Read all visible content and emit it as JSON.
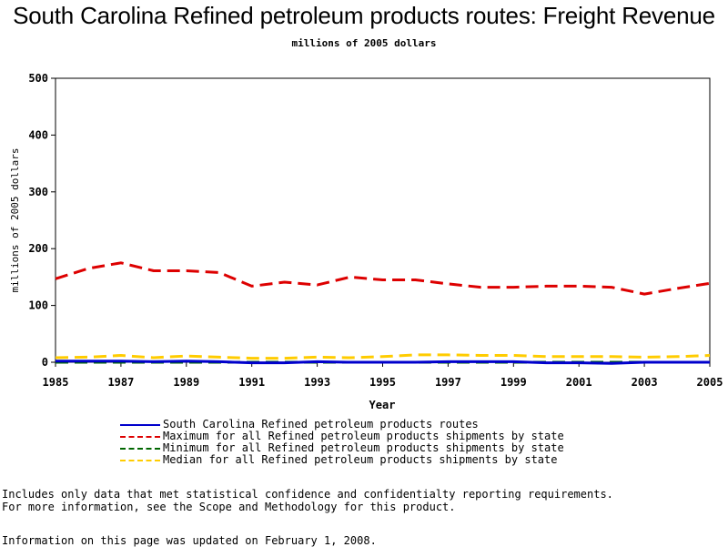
{
  "page": {
    "notes": [
      "Includes only data that met statistical confidence and confidentialty reporting requirements.",
      "For more information, see the Scope and Methodology for this product."
    ],
    "updated": "Information on this page was updated on February 1, 2008."
  },
  "chart_data": {
    "type": "line",
    "title": "South Carolina Refined petroleum products routes: Freight Revenue",
    "subtitle": "millions of 2005 dollars",
    "xlabel": "Year",
    "ylabel": "millions of 2005 dollars",
    "x": [
      1985,
      1986,
      1987,
      1988,
      1989,
      1990,
      1991,
      1992,
      1993,
      1994,
      1995,
      1996,
      1997,
      1998,
      1999,
      2000,
      2001,
      2002,
      2003,
      2004,
      2005
    ],
    "xticks": [
      "1985",
      "1987",
      "1989",
      "1991",
      "1993",
      "1995",
      "1997",
      "1999",
      "2001",
      "2003",
      "2005"
    ],
    "yticks": [
      "0",
      "100",
      "200",
      "300",
      "400",
      "500"
    ],
    "xlim": [
      1985,
      2005
    ],
    "ylim": [
      0,
      500
    ],
    "grid": false,
    "legend_position": "bottom",
    "series": [
      {
        "name": "South Carolina Refined petroleum products routes",
        "color": "#0000cc",
        "dash": "solid",
        "values": [
          2,
          2,
          2,
          1,
          2,
          1,
          -1,
          -1,
          1,
          0,
          0,
          0,
          1,
          1,
          1,
          -1,
          -1,
          -2,
          0,
          0,
          0
        ]
      },
      {
        "name": "Maximum for all Refined petroleum products shipments by state",
        "color": "#dd0000",
        "dash": "dashed",
        "values": [
          147,
          165,
          175,
          161,
          161,
          158,
          134,
          141,
          136,
          150,
          145,
          145,
          138,
          132,
          132,
          134,
          134,
          132,
          120,
          130,
          139
        ]
      },
      {
        "name": "Minimum for all Refined petroleum products shipments by state",
        "color": "#006600",
        "dash": "dashed",
        "values": [
          0,
          0,
          0,
          0,
          0,
          0,
          0,
          0,
          0,
          0,
          0,
          0,
          0,
          0,
          0,
          0,
          0,
          0,
          0,
          0,
          0
        ]
      },
      {
        "name": "Median for all Refined petroleum products shipments by state",
        "color": "#ffcc00",
        "dash": "dashed",
        "values": [
          8,
          9,
          12,
          8,
          11,
          9,
          7,
          7,
          9,
          8,
          10,
          13,
          13,
          12,
          12,
          10,
          10,
          10,
          9,
          10,
          12
        ]
      }
    ]
  }
}
